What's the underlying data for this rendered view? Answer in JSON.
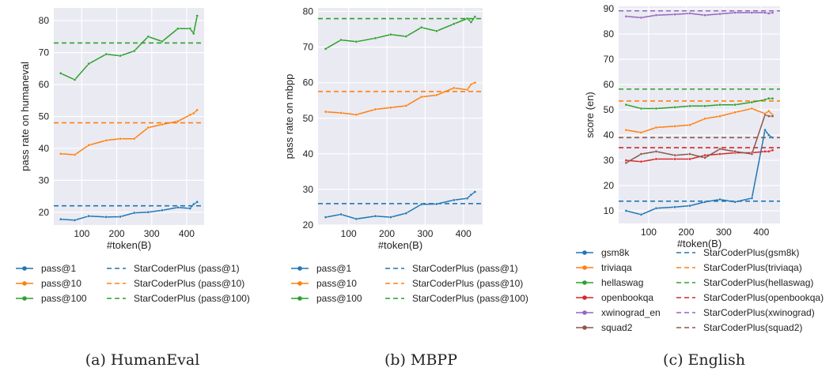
{
  "captions": [
    "(a) HumanEval",
    "(b) MBPP",
    "(c) English"
  ],
  "colors": {
    "blue": "#1f77b4",
    "orange": "#ff7f0e",
    "green": "#2ca02c",
    "red": "#d62728",
    "purple": "#9467bd",
    "brown": "#8c564b",
    "panel_bg": "#eaeaf2",
    "grid": "#ffffff"
  },
  "chart_data": [
    {
      "type": "line",
      "xlabel": "#token(B)",
      "ylabel": "pass rate on humaneval",
      "xlim": [
        20,
        450
      ],
      "ylim": [
        16,
        84
      ],
      "xticks": [
        100,
        200,
        300,
        400
      ],
      "yticks": [
        20,
        30,
        40,
        50,
        60,
        70,
        80
      ],
      "x": [
        40,
        80,
        120,
        170,
        210,
        250,
        290,
        330,
        375,
        410,
        420,
        430
      ],
      "series": [
        {
          "name": "pass@1",
          "color": "blue",
          "values": [
            17.8,
            17.5,
            18.8,
            18.5,
            18.6,
            19.8,
            20,
            20.6,
            21.5,
            21.2,
            22.5,
            23.2
          ]
        },
        {
          "name": "pass@10",
          "color": "orange",
          "values": [
            38.3,
            38,
            41,
            42.5,
            43,
            43,
            46.5,
            47.5,
            48.5,
            50.5,
            51,
            52
          ]
        },
        {
          "name": "pass@100",
          "color": "green",
          "values": [
            63.5,
            61.5,
            66.5,
            69.5,
            69,
            70.5,
            75,
            73.5,
            77.5,
            77.5,
            76,
            81.5
          ]
        }
      ],
      "baselines": [
        {
          "name": "StarCoderPlus (pass@1)",
          "color": "blue",
          "value": 22
        },
        {
          "name": "StarCoderPlus (pass@10)",
          "color": "orange",
          "value": 48
        },
        {
          "name": "StarCoderPlus (pass@100)",
          "color": "green",
          "value": 73
        }
      ],
      "legend_placement": "below"
    },
    {
      "type": "line",
      "xlabel": "#token(B)",
      "ylabel": "pass rate on mbpp",
      "xlim": [
        20,
        450
      ],
      "ylim": [
        20,
        81
      ],
      "xticks": [
        100,
        200,
        300,
        400
      ],
      "yticks": [
        20,
        30,
        40,
        50,
        60,
        70,
        80
      ],
      "x": [
        40,
        80,
        120,
        170,
        210,
        250,
        290,
        330,
        375,
        410,
        420,
        430
      ],
      "series": [
        {
          "name": "pass@1",
          "color": "blue",
          "values": [
            22.2,
            23,
            21.7,
            22.5,
            22.2,
            23.3,
            25.8,
            25.9,
            27,
            27.5,
            28.5,
            29.3
          ]
        },
        {
          "name": "pass@10",
          "color": "orange",
          "values": [
            51.8,
            51.5,
            51,
            52.5,
            53,
            53.5,
            56,
            56.5,
            58.5,
            58,
            59.5,
            60
          ]
        },
        {
          "name": "pass@100",
          "color": "green",
          "values": [
            69.5,
            72,
            71.5,
            72.5,
            73.5,
            73,
            75.5,
            74.5,
            76.5,
            78,
            77,
            78.5
          ]
        }
      ],
      "baselines": [
        {
          "name": "StarCoderPlus (pass@1)",
          "color": "blue",
          "value": 26
        },
        {
          "name": "StarCoderPlus (pass@10)",
          "color": "orange",
          "value": 57.5
        },
        {
          "name": "StarCoderPlus (pass@100)",
          "color": "green",
          "value": 78
        }
      ],
      "legend_placement": "below"
    },
    {
      "type": "line",
      "xlabel": "#token(B)",
      "ylabel": "score (en)",
      "xlim": [
        20,
        450
      ],
      "ylim": [
        5,
        91
      ],
      "xticks": [
        100,
        200,
        300,
        400
      ],
      "yticks": [
        10,
        20,
        30,
        40,
        50,
        60,
        70,
        80,
        90
      ],
      "x": [
        40,
        80,
        120,
        170,
        210,
        250,
        290,
        330,
        375,
        410,
        420,
        430
      ],
      "series": [
        {
          "name": "gsm8k",
          "color": "blue",
          "values": [
            10,
            8.5,
            11,
            11.5,
            12,
            13.5,
            14.5,
            13.5,
            15,
            42,
            40,
            39
          ]
        },
        {
          "name": "triviaqa",
          "color": "orange",
          "values": [
            42,
            41,
            43,
            43.5,
            44,
            46.5,
            47.5,
            49,
            50.5,
            48.5,
            49.5,
            48
          ]
        },
        {
          "name": "hellaswag",
          "color": "green",
          "values": [
            52,
            50.5,
            50.5,
            51,
            51.5,
            51.5,
            52,
            52,
            53,
            54,
            54.5,
            54.5
          ]
        },
        {
          "name": "openbookqa",
          "color": "red",
          "values": [
            30,
            29.5,
            30.5,
            30.5,
            30.5,
            32,
            32.5,
            33,
            33,
            33.5,
            33.5,
            34
          ]
        },
        {
          "name": "xwinograd_en",
          "color": "purple",
          "values": [
            87,
            86.5,
            87.5,
            87.8,
            88.2,
            87.5,
            88,
            88.5,
            88.5,
            88.5,
            88.2,
            88.5
          ]
        },
        {
          "name": "squad2",
          "color": "brown",
          "values": [
            29,
            32.5,
            33.5,
            32,
            32.5,
            31,
            34.5,
            33.5,
            32.5,
            48,
            47.5,
            47.5
          ]
        }
      ],
      "baselines": [
        {
          "name": "StarCoderPlus(gsm8k)",
          "color": "blue",
          "value": 13.8
        },
        {
          "name": "StarCoderPlus(triviaqa)",
          "color": "orange",
          "value": 53.5
        },
        {
          "name": "StarCoderPlus(hellaswag)",
          "color": "green",
          "value": 58.2
        },
        {
          "name": "StarCoderPlus(openbookqa)",
          "color": "red",
          "value": 35
        },
        {
          "name": "StarCoderPlus(xwinograd)",
          "color": "purple",
          "value": 89.2
        },
        {
          "name": "StarCoderPlus(squad2)",
          "color": "brown",
          "value": 39
        }
      ],
      "legend_placement": "below"
    }
  ]
}
